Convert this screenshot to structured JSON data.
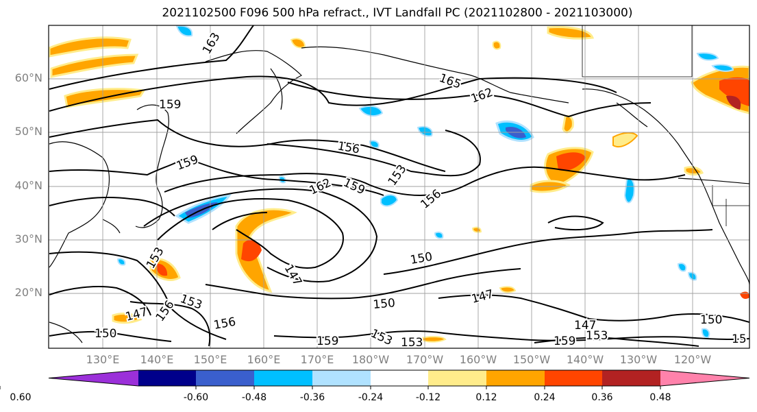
{
  "title": "2021102500 F096 500 hPa refract., IVT Landfall PC (2021102800 - 2021103000)",
  "lat_labels": [
    "60°N",
    "50°N",
    "40°N",
    "30°N",
    "20°N"
  ],
  "lon_labels": [
    "130°E",
    "140°E",
    "150°E",
    "160°E",
    "170°E",
    "180°W",
    "170°W",
    "160°W",
    "150°W",
    "140°W",
    "130°W",
    "120°W"
  ],
  "colorbar": {
    "labels": [
      "-0.60",
      "-0.48",
      "-0.36",
      "-0.24",
      "-0.12",
      "0.12",
      "0.24",
      "0.36",
      "0.48",
      "0.60"
    ],
    "colors": [
      "#9b30d9",
      "#00008b",
      "#3a5fcd",
      "#00bfff",
      "#b0e2ff",
      "#ffffff",
      "#ffec8b",
      "#ffa500",
      "#ff4500",
      "#b22222",
      "#ff82ab"
    ]
  },
  "contour_labels": [
    "163",
    "159",
    "165",
    "162",
    "156",
    "159",
    "162",
    "159",
    "153",
    "156",
    "153",
    "150",
    "147",
    "153",
    "156",
    "150",
    "147",
    "150",
    "147",
    "156",
    "153",
    "159",
    "159",
    "153",
    "150",
    "147",
    "153",
    "15"
  ]
}
